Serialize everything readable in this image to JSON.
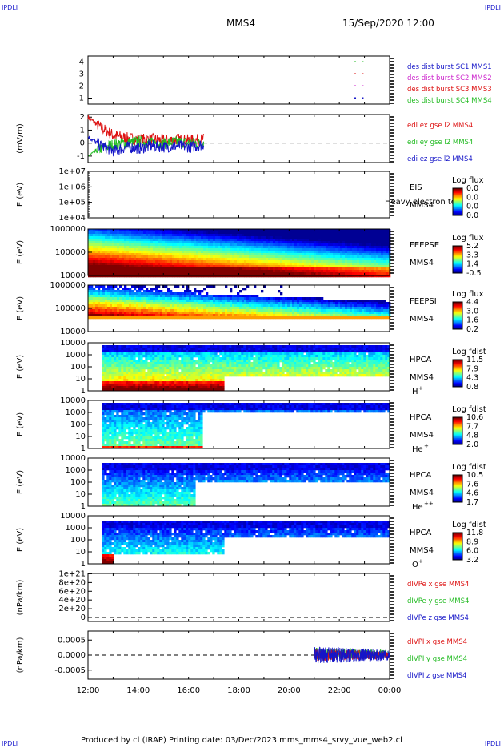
{
  "corner_labels": {
    "top_left": "IPDLI",
    "top_right": "IPDLI",
    "bottom_left": "IPDLI",
    "bottom_right": "IPDLI"
  },
  "header": {
    "spacecraft": "MMS4",
    "datetime": "15/Sep/2020 12:00"
  },
  "footer": {
    "text": "Produced by cl (IRAP)    Printing date: 03/Dec/2023    mms_mms4_srvy_vue_web2.cl"
  },
  "colors": {
    "mms1": "#1515c8",
    "mms2": "#cc22cc",
    "mms3": "#dd1111",
    "mms4": "#22bb22",
    "x": "#dd1111",
    "y": "#22bb22",
    "z": "#1515c8"
  },
  "chart_data": [
    {
      "type": "scatter",
      "id": "burst",
      "yticks": [
        "1",
        "2",
        "3",
        "4"
      ],
      "ylim": [
        0.5,
        4.5
      ],
      "legend": [
        {
          "label": "des dist burst SC1 MMS1",
          "color": "#1515c8"
        },
        {
          "label": "des dist burst SC2 MMS2",
          "color": "#cc22cc"
        },
        {
          "label": "des dist burst SC3 MMS3",
          "color": "#dd1111"
        },
        {
          "label": "des dist burst SC4 MMS4",
          "color": "#22bb22"
        }
      ],
      "points": [
        {
          "t": 22.6,
          "sc": 4
        },
        {
          "t": 22.9,
          "sc": 4
        },
        {
          "t": 22.6,
          "sc": 3
        },
        {
          "t": 22.9,
          "sc": 3
        },
        {
          "t": 22.6,
          "sc": 2
        },
        {
          "t": 22.9,
          "sc": 2
        },
        {
          "t": 22.6,
          "sc": 1
        },
        {
          "t": 22.9,
          "sc": 1
        }
      ]
    },
    {
      "type": "line",
      "id": "edi",
      "ylabel": "(mV/m)",
      "yticks": [
        "-1",
        "0",
        "1",
        "2"
      ],
      "ylim": [
        -1.5,
        2.2
      ],
      "legend": [
        {
          "label": "edi ex gse l2 MMS4",
          "color": "#dd1111"
        },
        {
          "label": "edi ey gse l2 MMS4",
          "color": "#22bb22"
        },
        {
          "label": "edi ez gse l2 MMS4",
          "color": "#1515c8"
        }
      ],
      "t_range": [
        12.0,
        16.6
      ],
      "series": [
        {
          "name": "edi ex gse l2 MMS4",
          "color": "#dd1111",
          "values": [
            2.0,
            1.2,
            0.6,
            0.4,
            0.3,
            0.3,
            0.2,
            0.3,
            0.2,
            0.3
          ]
        },
        {
          "name": "edi ey gse l2 MMS4",
          "color": "#22bb22",
          "values": [
            -1.0,
            -0.4,
            -0.1,
            0.0,
            0.1,
            0.0,
            0.0,
            0.1,
            0.0,
            0.0
          ]
        },
        {
          "name": "edi ez gse l2 MMS4",
          "color": "#1515c8",
          "values": [
            0.5,
            -0.2,
            -0.6,
            -0.3,
            -0.4,
            -0.2,
            -0.3,
            -0.2,
            -0.3,
            -0.1
          ]
        }
      ]
    },
    {
      "type": "heatmap",
      "id": "eis",
      "ylabel": "E (eV)",
      "yticks": [
        "1e+04",
        "1e+05",
        "1e+06",
        "1e+07"
      ],
      "instrument": "EIS",
      "spacecraft": "MMS4",
      "overlay_label": "Heavy electron to",
      "colorbar": {
        "title": "Log flux",
        "ticks": [
          "0.0",
          "0.0",
          "0.0",
          "0.0"
        ]
      }
    },
    {
      "type": "heatmap",
      "id": "feepse",
      "ylabel": "E (eV)",
      "yticks": [
        "10000",
        "100000",
        "1000000"
      ],
      "instrument": "FEEPSE",
      "spacecraft": "MMS4",
      "colorbar": {
        "title": "Log flux",
        "ticks": [
          "5.2",
          "3.3",
          "1.4",
          "-0.5"
        ]
      }
    },
    {
      "type": "heatmap",
      "id": "feepsi",
      "ylabel": "E (eV)",
      "yticks": [
        "10000",
        "100000",
        "1000000"
      ],
      "instrument": "FEEPSI",
      "spacecraft": "MMS4",
      "colorbar": {
        "title": "Log flux",
        "ticks": [
          "4.4",
          "3.0",
          "1.6",
          "0.2"
        ]
      }
    },
    {
      "type": "heatmap",
      "id": "hpca_h",
      "ylabel": "E (eV)",
      "yticks": [
        "1",
        "10",
        "100",
        "1000",
        "10000"
      ],
      "instrument": "HPCA",
      "spacecraft": "MMS4",
      "species": "H",
      "charge": "+",
      "colorbar": {
        "title": "Log fdist",
        "ticks": [
          "11.5",
          "7.9",
          "4.3",
          "0.8"
        ]
      }
    },
    {
      "type": "heatmap",
      "id": "hpca_he",
      "ylabel": "E (eV)",
      "yticks": [
        "1",
        "10",
        "100",
        "1000",
        "10000"
      ],
      "instrument": "HPCA",
      "spacecraft": "MMS4",
      "species": "He",
      "charge": "+",
      "colorbar": {
        "title": "Log fdist",
        "ticks": [
          "10.6",
          "7.7",
          "4.8",
          "2.0"
        ]
      }
    },
    {
      "type": "heatmap",
      "id": "hpca_he2",
      "ylabel": "E (eV)",
      "yticks": [
        "1",
        "10",
        "100",
        "1000",
        "10000"
      ],
      "instrument": "HPCA",
      "spacecraft": "MMS4",
      "species": "He",
      "charge": "++",
      "colorbar": {
        "title": "Log fdist",
        "ticks": [
          "10.5",
          "7.6",
          "4.6",
          "1.7"
        ]
      }
    },
    {
      "type": "heatmap",
      "id": "hpca_o",
      "ylabel": "E (eV)",
      "yticks": [
        "1",
        "10",
        "100",
        "1000",
        "10000"
      ],
      "instrument": "HPCA",
      "spacecraft": "MMS4",
      "species": "O",
      "charge": "+",
      "colorbar": {
        "title": "Log fdist",
        "ticks": [
          "11.8",
          "8.9",
          "6.0",
          "3.2"
        ]
      }
    },
    {
      "type": "line",
      "id": "divpe",
      "ylabel": "(nPa/km)",
      "yticks": [
        "0",
        "2e+20",
        "4e+20",
        "6e+20",
        "8e+20",
        "1e+21"
      ],
      "ylim": [
        0,
        1.1e+21
      ],
      "legend": [
        {
          "label": "dIVPe x gse MMS4",
          "color": "#dd1111"
        },
        {
          "label": "dIVPe y gse MMS4",
          "color": "#22bb22"
        },
        {
          "label": "dIVPe z gse MMS4",
          "color": "#1515c8"
        }
      ]
    },
    {
      "type": "line",
      "id": "divpi",
      "ylabel": "(nPa/km)",
      "yticks": [
        "-0.0005",
        "0.0000",
        "0.0005"
      ],
      "ylim": [
        -0.0008,
        0.0008
      ],
      "legend": [
        {
          "label": "dIVPI x gse MMS4",
          "color": "#dd1111"
        },
        {
          "label": "dIVPI y gse MMS4",
          "color": "#22bb22"
        },
        {
          "label": "dIVPI z gse MMS4",
          "color": "#1515c8"
        }
      ],
      "t_range": [
        21.0,
        24.0
      ]
    }
  ],
  "time_axis": {
    "ticks": [
      "12:00",
      "14:00",
      "16:00",
      "18:00",
      "20:00",
      "22:00",
      "00:00"
    ],
    "range_hours": [
      12,
      24
    ]
  }
}
